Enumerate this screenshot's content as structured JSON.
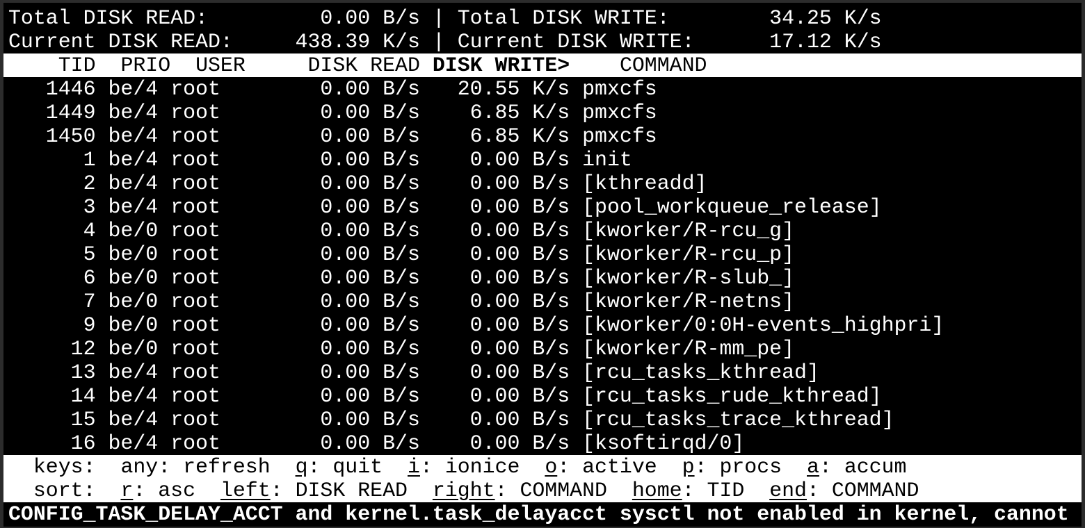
{
  "summary": {
    "total_read_label": "Total DISK READ:",
    "total_read": "0.00 B/s",
    "total_write_label": "Total DISK WRITE:",
    "total_write": "34.25 K/s",
    "current_read_label": "Current DISK READ:",
    "current_read": "438.39 K/s",
    "current_write_label": "Current DISK WRITE:",
    "current_write": "17.12 K/s",
    "separator": "|"
  },
  "columns": {
    "tid": "TID",
    "prio": "PRIO",
    "user": "USER",
    "disk_read": "DISK READ",
    "disk_write": "DISK WRITE>",
    "command": "COMMAND"
  },
  "rows": [
    {
      "tid": "1446",
      "prio": "be/4",
      "user": "root",
      "read": "0.00 B/s",
      "write": "20.55 K/s",
      "command": "pmxcfs"
    },
    {
      "tid": "1449",
      "prio": "be/4",
      "user": "root",
      "read": "0.00 B/s",
      "write": "6.85 K/s",
      "command": "pmxcfs"
    },
    {
      "tid": "1450",
      "prio": "be/4",
      "user": "root",
      "read": "0.00 B/s",
      "write": "6.85 K/s",
      "command": "pmxcfs"
    },
    {
      "tid": "1",
      "prio": "be/4",
      "user": "root",
      "read": "0.00 B/s",
      "write": "0.00 B/s",
      "command": "init"
    },
    {
      "tid": "2",
      "prio": "be/4",
      "user": "root",
      "read": "0.00 B/s",
      "write": "0.00 B/s",
      "command": "[kthreadd]"
    },
    {
      "tid": "3",
      "prio": "be/4",
      "user": "root",
      "read": "0.00 B/s",
      "write": "0.00 B/s",
      "command": "[pool_workqueue_release]"
    },
    {
      "tid": "4",
      "prio": "be/0",
      "user": "root",
      "read": "0.00 B/s",
      "write": "0.00 B/s",
      "command": "[kworker/R-rcu_g]"
    },
    {
      "tid": "5",
      "prio": "be/0",
      "user": "root",
      "read": "0.00 B/s",
      "write": "0.00 B/s",
      "command": "[kworker/R-rcu_p]"
    },
    {
      "tid": "6",
      "prio": "be/0",
      "user": "root",
      "read": "0.00 B/s",
      "write": "0.00 B/s",
      "command": "[kworker/R-slub_]"
    },
    {
      "tid": "7",
      "prio": "be/0",
      "user": "root",
      "read": "0.00 B/s",
      "write": "0.00 B/s",
      "command": "[kworker/R-netns]"
    },
    {
      "tid": "9",
      "prio": "be/0",
      "user": "root",
      "read": "0.00 B/s",
      "write": "0.00 B/s",
      "command": "[kworker/0:0H-events_highpri]"
    },
    {
      "tid": "12",
      "prio": "be/0",
      "user": "root",
      "read": "0.00 B/s",
      "write": "0.00 B/s",
      "command": "[kworker/R-mm_pe]"
    },
    {
      "tid": "13",
      "prio": "be/4",
      "user": "root",
      "read": "0.00 B/s",
      "write": "0.00 B/s",
      "command": "[rcu_tasks_kthread]"
    },
    {
      "tid": "14",
      "prio": "be/4",
      "user": "root",
      "read": "0.00 B/s",
      "write": "0.00 B/s",
      "command": "[rcu_tasks_rude_kthread]"
    },
    {
      "tid": "15",
      "prio": "be/4",
      "user": "root",
      "read": "0.00 B/s",
      "write": "0.00 B/s",
      "command": "[rcu_tasks_trace_kthread]"
    },
    {
      "tid": "16",
      "prio": "be/4",
      "user": "root",
      "read": "0.00 B/s",
      "write": "0.00 B/s",
      "command": "[ksoftirqd/0]"
    }
  ],
  "keys": {
    "label": "keys:",
    "items": [
      {
        "key": "any",
        "desc": "refresh",
        "underline": false
      },
      {
        "key": "q",
        "desc": "quit",
        "underline": true
      },
      {
        "key": "i",
        "desc": "ionice",
        "underline": true
      },
      {
        "key": "o",
        "desc": "active",
        "underline": true
      },
      {
        "key": "p",
        "desc": "procs",
        "underline": true
      },
      {
        "key": "a",
        "desc": "accum",
        "underline": true
      }
    ]
  },
  "sort": {
    "label": "sort:",
    "items": [
      {
        "key": "r",
        "desc": "asc",
        "underline": true
      },
      {
        "key": "left",
        "desc": "DISK READ",
        "underline": true
      },
      {
        "key": "right",
        "desc": "COMMAND",
        "underline": true
      },
      {
        "key": "home",
        "desc": "TID",
        "underline": true
      },
      {
        "key": "end",
        "desc": "COMMAND",
        "underline": true
      }
    ]
  },
  "warning": "CONFIG_TASK_DELAY_ACCT and kernel.task_delayacct sysctl not enabled in kernel, cannot",
  "colors": {
    "background": "#000000",
    "foreground": "#ffffff",
    "frame": "#2c2c2c"
  }
}
